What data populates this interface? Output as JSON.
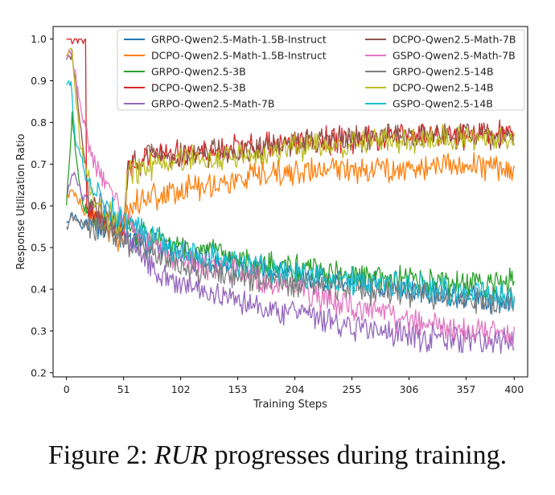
{
  "chart_data": {
    "type": "line",
    "title": "",
    "xlabel": "Training Steps",
    "ylabel": "Response Utilization Ratio",
    "xlim": [
      -12,
      412
    ],
    "ylim": [
      0.19,
      1.03
    ],
    "xticks": [
      0,
      51,
      102,
      153,
      204,
      255,
      306,
      357,
      400
    ],
    "yticks": [
      0.2,
      0.3,
      0.4,
      0.5,
      0.6,
      0.7,
      0.8,
      0.9,
      1.0
    ],
    "legend_position": "top-center",
    "series": [
      {
        "name": "GRPO-Qwen2.5-Math-1.5B-Instruct",
        "color": "#1f77b4",
        "anchors": [
          [
            0,
            0.57
          ],
          [
            5,
            0.58
          ],
          [
            15,
            0.56
          ],
          [
            30,
            0.55
          ],
          [
            51,
            0.53
          ],
          [
            80,
            0.5
          ],
          [
            120,
            0.47
          ],
          [
            153,
            0.45
          ],
          [
            204,
            0.43
          ],
          [
            255,
            0.42
          ],
          [
            306,
            0.4
          ],
          [
            357,
            0.38
          ],
          [
            400,
            0.36
          ]
        ]
      },
      {
        "name": "DCPO-Qwen2.5-Math-1.5B-Instruct",
        "color": "#ff7f0e",
        "anchors": [
          [
            0,
            0.62
          ],
          [
            5,
            0.64
          ],
          [
            15,
            0.59
          ],
          [
            30,
            0.56
          ],
          [
            45,
            0.53
          ],
          [
            51,
            0.52
          ],
          [
            55,
            0.6
          ],
          [
            70,
            0.62
          ],
          [
            102,
            0.64
          ],
          [
            153,
            0.66
          ],
          [
            204,
            0.68
          ],
          [
            255,
            0.69
          ],
          [
            306,
            0.69
          ],
          [
            357,
            0.7
          ],
          [
            400,
            0.69
          ]
        ]
      },
      {
        "name": "GRPO-Qwen2.5-3B",
        "color": "#2ca02c",
        "anchors": [
          [
            0,
            0.6
          ],
          [
            5,
            0.82
          ],
          [
            8,
            0.72
          ],
          [
            15,
            0.6
          ],
          [
            30,
            0.57
          ],
          [
            51,
            0.55
          ],
          [
            80,
            0.52
          ],
          [
            102,
            0.5
          ],
          [
            153,
            0.47
          ],
          [
            204,
            0.45
          ],
          [
            255,
            0.43
          ],
          [
            306,
            0.42
          ],
          [
            357,
            0.41
          ],
          [
            400,
            0.42
          ]
        ]
      },
      {
        "name": "DCPO-Qwen2.5-3B",
        "color": "#d62728",
        "anchors": [
          [
            0,
            1.0
          ],
          [
            17,
            1.0
          ],
          [
            18,
            0.6
          ],
          [
            30,
            0.57
          ],
          [
            51,
            0.56
          ],
          [
            55,
            0.7
          ],
          [
            80,
            0.72
          ],
          [
            102,
            0.72
          ],
          [
            153,
            0.74
          ],
          [
            204,
            0.75
          ],
          [
            255,
            0.76
          ],
          [
            306,
            0.77
          ],
          [
            357,
            0.77
          ],
          [
            400,
            0.78
          ]
        ]
      },
      {
        "name": "GRPO-Qwen2.5-Math-7B",
        "color": "#9467bd",
        "anchors": [
          [
            0,
            0.63
          ],
          [
            5,
            0.68
          ],
          [
            15,
            0.62
          ],
          [
            30,
            0.6
          ],
          [
            51,
            0.53
          ],
          [
            80,
            0.45
          ],
          [
            102,
            0.41
          ],
          [
            153,
            0.38
          ],
          [
            204,
            0.34
          ],
          [
            255,
            0.31
          ],
          [
            306,
            0.29
          ],
          [
            357,
            0.28
          ],
          [
            400,
            0.27
          ]
        ]
      },
      {
        "name": "DCPO-Qwen2.5-Math-7B",
        "color": "#8c564b",
        "anchors": [
          [
            0,
            0.95
          ],
          [
            5,
            0.96
          ],
          [
            10,
            0.85
          ],
          [
            20,
            0.62
          ],
          [
            35,
            0.56
          ],
          [
            51,
            0.55
          ],
          [
            55,
            0.7
          ],
          [
            80,
            0.72
          ],
          [
            102,
            0.72
          ],
          [
            153,
            0.73
          ],
          [
            204,
            0.75
          ],
          [
            255,
            0.76
          ],
          [
            306,
            0.77
          ],
          [
            357,
            0.77
          ],
          [
            400,
            0.77
          ]
        ]
      },
      {
        "name": "GSPO-Qwen2.5-Math-7B",
        "color": "#e377c2",
        "anchors": [
          [
            0,
            0.96
          ],
          [
            5,
            0.96
          ],
          [
            15,
            0.8
          ],
          [
            25,
            0.7
          ],
          [
            51,
            0.58
          ],
          [
            80,
            0.5
          ],
          [
            102,
            0.47
          ],
          [
            153,
            0.44
          ],
          [
            204,
            0.4
          ],
          [
            255,
            0.36
          ],
          [
            306,
            0.32
          ],
          [
            357,
            0.3
          ],
          [
            400,
            0.29
          ]
        ]
      },
      {
        "name": "GRPO-Qwen2.5-14B",
        "color": "#7f7f7f",
        "anchors": [
          [
            0,
            0.55
          ],
          [
            5,
            0.58
          ],
          [
            15,
            0.56
          ],
          [
            30,
            0.55
          ],
          [
            51,
            0.52
          ],
          [
            80,
            0.49
          ],
          [
            102,
            0.46
          ],
          [
            153,
            0.43
          ],
          [
            204,
            0.41
          ],
          [
            255,
            0.4
          ],
          [
            306,
            0.39
          ],
          [
            357,
            0.38
          ],
          [
            400,
            0.37
          ]
        ]
      },
      {
        "name": "DCPO-Qwen2.5-14B",
        "color": "#bcbd22",
        "anchors": [
          [
            0,
            0.96
          ],
          [
            5,
            0.97
          ],
          [
            12,
            0.75
          ],
          [
            25,
            0.6
          ],
          [
            51,
            0.55
          ],
          [
            55,
            0.68
          ],
          [
            80,
            0.7
          ],
          [
            102,
            0.71
          ],
          [
            153,
            0.72
          ],
          [
            204,
            0.74
          ],
          [
            255,
            0.75
          ],
          [
            306,
            0.76
          ],
          [
            357,
            0.76
          ],
          [
            400,
            0.77
          ]
        ]
      },
      {
        "name": "GSPO-Qwen2.5-14B",
        "color": "#17becf",
        "anchors": [
          [
            0,
            0.89
          ],
          [
            4,
            0.89
          ],
          [
            8,
            0.76
          ],
          [
            20,
            0.65
          ],
          [
            35,
            0.6
          ],
          [
            51,
            0.56
          ],
          [
            80,
            0.52
          ],
          [
            102,
            0.49
          ],
          [
            153,
            0.46
          ],
          [
            204,
            0.44
          ],
          [
            255,
            0.42
          ],
          [
            306,
            0.41
          ],
          [
            357,
            0.39
          ],
          [
            400,
            0.38
          ]
        ]
      }
    ]
  },
  "caption": {
    "prefix": "Figure 2: ",
    "emphasis": "RUR",
    "suffix": " progresses during training."
  }
}
